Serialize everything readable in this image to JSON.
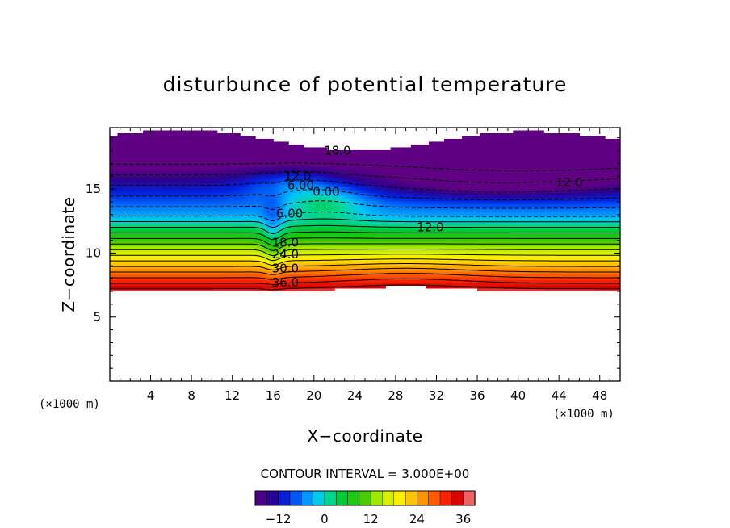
{
  "chart_data": {
    "type": "contour",
    "title": "disturbunce of potential temperature",
    "xlabel": "X−coordinate",
    "ylabel": "Z−coordinate",
    "x_unit": "(×1000 m)",
    "y_unit": "(×1000 m)",
    "xlim": [
      0,
      50
    ],
    "ylim": [
      0,
      19.8
    ],
    "x_ticks": [
      4,
      8,
      12,
      16,
      20,
      24,
      28,
      32,
      36,
      40,
      44,
      48
    ],
    "y_ticks": [
      5,
      10,
      15
    ],
    "contour_interval_label": "CONTOUR INTERVAL = 3.000E+00",
    "contour_interval": 3.0,
    "value_range": [
      -18,
      39
    ],
    "colorbar_ticks": [
      -12,
      0,
      12,
      24,
      36
    ],
    "contour_labels": [
      {
        "text": "18.0",
        "x": 22.3,
        "z": 18.0
      },
      {
        "text": "12.0",
        "x": 18.4,
        "z": 16.0
      },
      {
        "text": "6.00",
        "x": 18.7,
        "z": 15.3
      },
      {
        "text": "0.00",
        "x": 21.2,
        "z": 14.8
      },
      {
        "text": "6.00",
        "x": 17.6,
        "z": 13.1
      },
      {
        "text": "12.0",
        "x": 31.4,
        "z": 12.0
      },
      {
        "text": "12.0",
        "x": 45.0,
        "z": 15.5
      },
      {
        "text": "18.0",
        "x": 17.2,
        "z": 10.8
      },
      {
        "text": "24.0",
        "x": 17.2,
        "z": 9.9
      },
      {
        "text": "30.0",
        "x": 17.2,
        "z": 8.8
      },
      {
        "text": "36.0",
        "x": 17.2,
        "z": 7.7
      }
    ],
    "field_notes": {
      "negative_contours": "dashed",
      "positive_contours": "solid",
      "below_z_about_7": "no data (white)",
      "deformation_near_x": 16
    }
  }
}
